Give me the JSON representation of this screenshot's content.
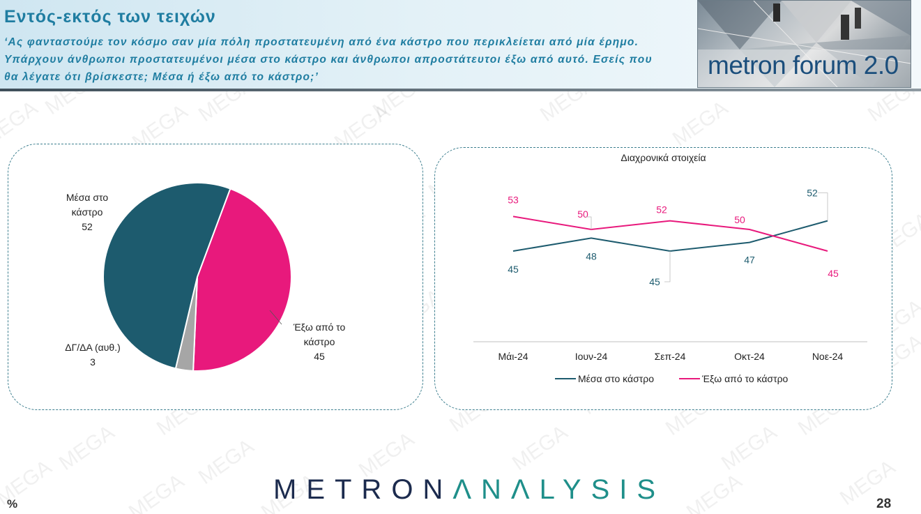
{
  "header": {
    "title": "Εντός-εκτός των τειχών",
    "question": "‘Ας φανταστούμε τον κόσμο σαν μία πόλη προστατευμένη από ένα κάστρο που περικλείεται από μία έρημο. Υπάρχουν άνθρωποι προστατευμένοι μέσα στο κάστρο και άνθρωποι απροστάτευτοι έξω από αυτό. Εσείς που θα λέγατε ότι βρίσκεστε; Μέσα ή έξω από το κάστρο;’",
    "logo_text": "metron forum 2.0"
  },
  "watermark": "MEGA",
  "footer": {
    "brand_part1": "METRON",
    "brand_part2": "ΛNΛLYSIS",
    "unit": "%",
    "page_number": "28"
  },
  "colors": {
    "inside": "#1d5b6e",
    "outside": "#e8197c",
    "dk": "#a6a6a6",
    "title": "#1f7da1"
  },
  "chart_data": [
    {
      "type": "pie",
      "slices": [
        {
          "label_line1": "Μέσα στο",
          "label_line2": "κάστρο",
          "value": 52
        },
        {
          "label_line1": "Έξω από το",
          "label_line2": "κάστρο",
          "value": 45
        },
        {
          "label_line1": "ΔΓ/ΔΑ (αυθ.)",
          "label_line2": "",
          "value": 3
        }
      ]
    },
    {
      "type": "line",
      "title": "Διαχρονικά στοιχεία",
      "categories": [
        "Μάι-24",
        "Ιουν-24",
        "Σεπ-24",
        "Οκτ-24",
        "Νοε-24"
      ],
      "series": [
        {
          "name": "Μέσα στο κάστρο",
          "values": [
            45,
            48,
            45,
            47,
            52
          ]
        },
        {
          "name": "Έξω από το κάστρο",
          "values": [
            53,
            50,
            52,
            50,
            45
          ]
        }
      ],
      "legend": "bottom"
    }
  ]
}
